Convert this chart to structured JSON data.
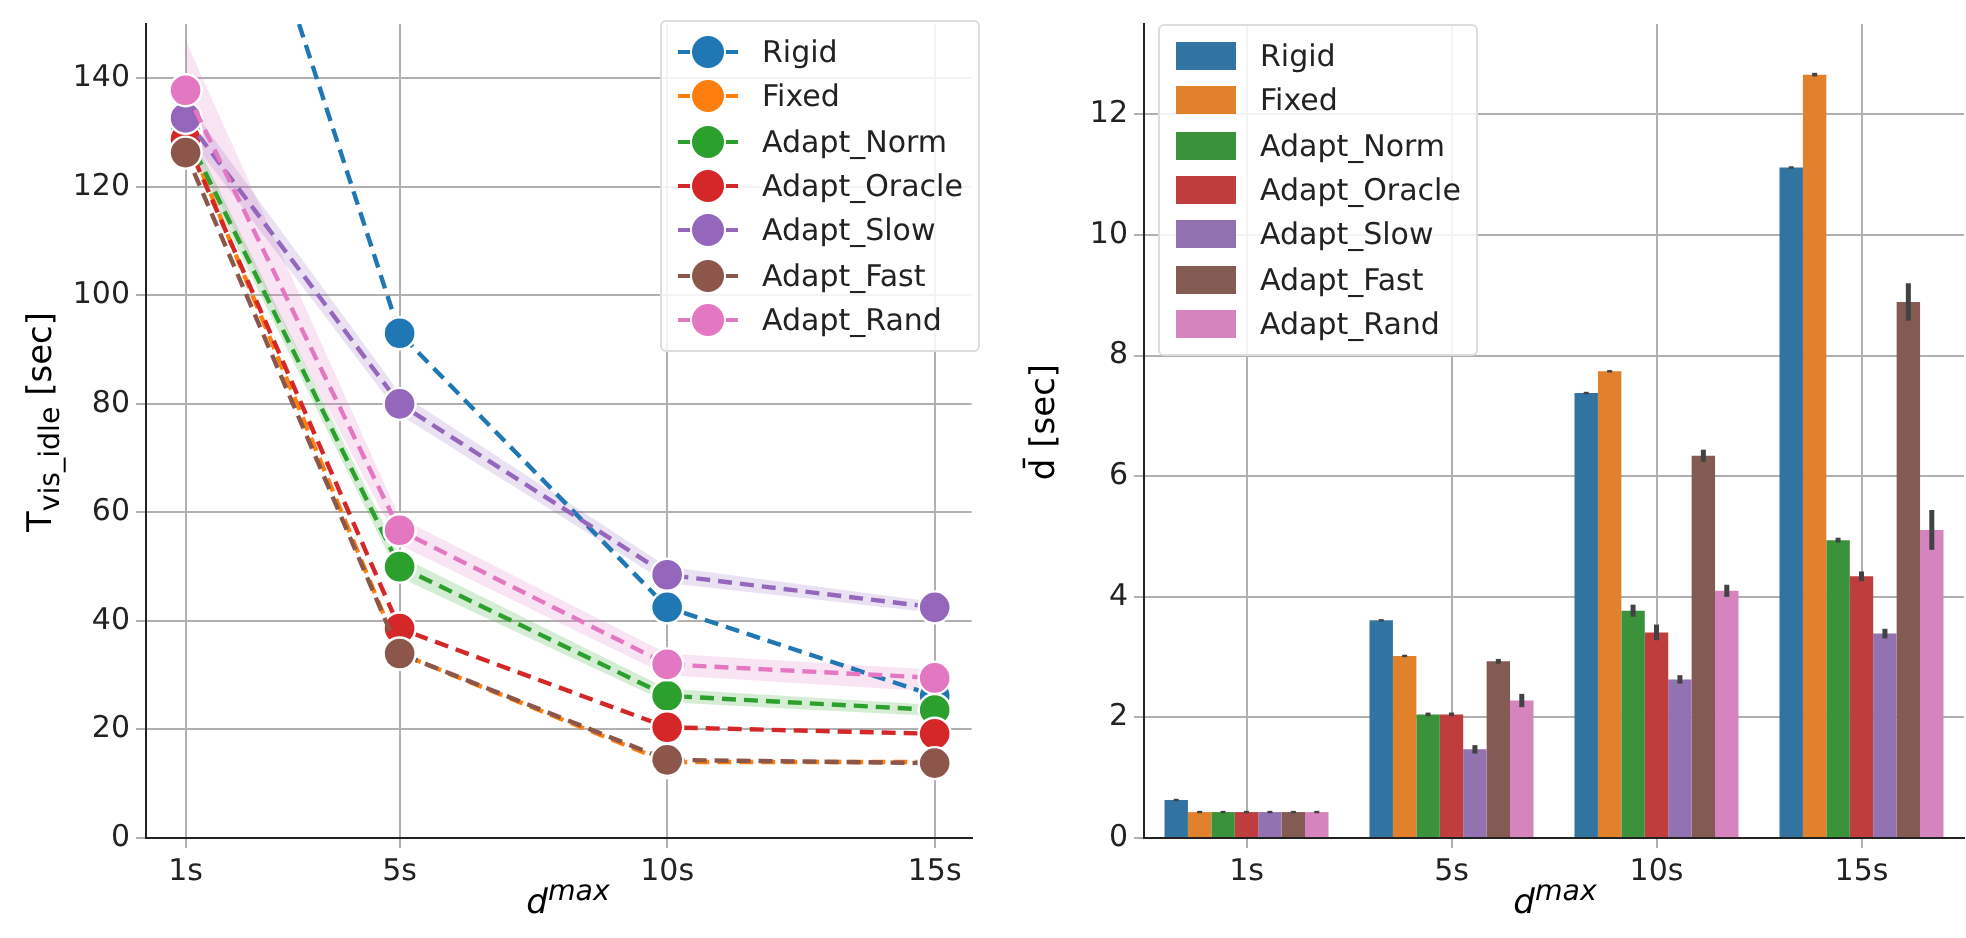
{
  "chart_data": [
    {
      "type": "line",
      "xlabel": "d$^{max}$",
      "ylabel": "T$_{vis_idle}$ [sec]",
      "x": [
        1,
        5,
        10,
        15
      ],
      "xlim": [
        0.26,
        15.69
      ],
      "xticks": [
        {
          "value": 1,
          "label": "1s"
        },
        {
          "value": 5,
          "label": "5s"
        },
        {
          "value": 10,
          "label": "10s"
        },
        {
          "value": 15,
          "label": "15s"
        }
      ],
      "ylim": [
        0,
        150
      ],
      "yticks": [
        0,
        20,
        40,
        60,
        80,
        100,
        120,
        140
      ],
      "grid": true,
      "legend": "top right",
      "marker": "circle",
      "line_style": "dashed",
      "series": [
        {
          "name": "Rigid",
          "color": "#1f77b4",
          "x": [
            3.12,
            5,
            10,
            15
          ],
          "values": [
            150,
            93,
            42.5,
            26.2
          ]
        },
        {
          "name": "Fixed",
          "color": "#ff7f0e",
          "values": [
            130,
            34,
            14,
            14
          ]
        },
        {
          "name": "Adapt_Norm",
          "color": "#2ca02c",
          "values": [
            130,
            50,
            26.2,
            23.6
          ],
          "lower": [
            128,
            48,
            25,
            22.5
          ],
          "upper": [
            132,
            52,
            27.5,
            24.5
          ]
        },
        {
          "name": "Adapt_Oracle",
          "color": "#d62728",
          "values": [
            128.8,
            38.6,
            20.4,
            19.2
          ]
        },
        {
          "name": "Adapt_Slow",
          "color": "#9467bd",
          "values": [
            132.7,
            80,
            48.5,
            42.5
          ],
          "lower": [
            130,
            78,
            47,
            41.5
          ],
          "upper": [
            136,
            82,
            50,
            43.5
          ]
        },
        {
          "name": "Adapt_Fast",
          "color": "#8c564b",
          "values": [
            126.3,
            34,
            14.4,
            13.8
          ]
        },
        {
          "name": "Adapt_Rand",
          "color": "#e377c2",
          "values": [
            137.8,
            56.7,
            32,
            29.5
          ],
          "lower": [
            129,
            54,
            30,
            27
          ],
          "upper": [
            147,
            59,
            34,
            31
          ]
        }
      ]
    },
    {
      "type": "bar",
      "xlabel": "d$^{max}$",
      "ylabel": "d̄ [sec]",
      "categories": [
        "1s",
        "5s",
        "10s",
        "15s"
      ],
      "ylim": [
        0,
        13.5
      ],
      "yticks": [
        0,
        2,
        4,
        6,
        8,
        10,
        12
      ],
      "grid": true,
      "legend": "top left",
      "series": [
        {
          "name": "Rigid",
          "color": "#3274a1",
          "values": [
            0.63,
            3.61,
            7.38,
            11.12
          ],
          "errors": [
            0.02,
            0.02,
            0.02,
            0.02
          ]
        },
        {
          "name": "Fixed",
          "color": "#e1812c",
          "values": [
            0.43,
            3.02,
            7.74,
            12.66
          ],
          "errors": [
            0.02,
            0.02,
            0.02,
            0.03
          ]
        },
        {
          "name": "Adapt_Norm",
          "color": "#3a923a",
          "values": [
            0.43,
            2.05,
            3.77,
            4.94
          ],
          "errors": [
            0.02,
            0.03,
            0.1,
            0.04
          ]
        },
        {
          "name": "Adapt_Oracle",
          "color": "#c03d3e",
          "values": [
            0.43,
            2.05,
            3.41,
            4.34
          ],
          "errors": [
            0.02,
            0.03,
            0.13,
            0.08
          ]
        },
        {
          "name": "Adapt_Slow",
          "color": "#9372b2",
          "values": [
            0.43,
            1.47,
            2.63,
            3.39
          ],
          "errors": [
            0.02,
            0.07,
            0.07,
            0.08
          ]
        },
        {
          "name": "Adapt_Fast",
          "color": "#845b53",
          "values": [
            0.43,
            2.93,
            6.34,
            8.89
          ],
          "errors": [
            0.02,
            0.04,
            0.1,
            0.31
          ]
        },
        {
          "name": "Adapt_Rand",
          "color": "#d684bd",
          "values": [
            0.43,
            2.28,
            4.1,
            5.11
          ],
          "errors": [
            0.02,
            0.11,
            0.1,
            0.33
          ]
        }
      ]
    }
  ]
}
